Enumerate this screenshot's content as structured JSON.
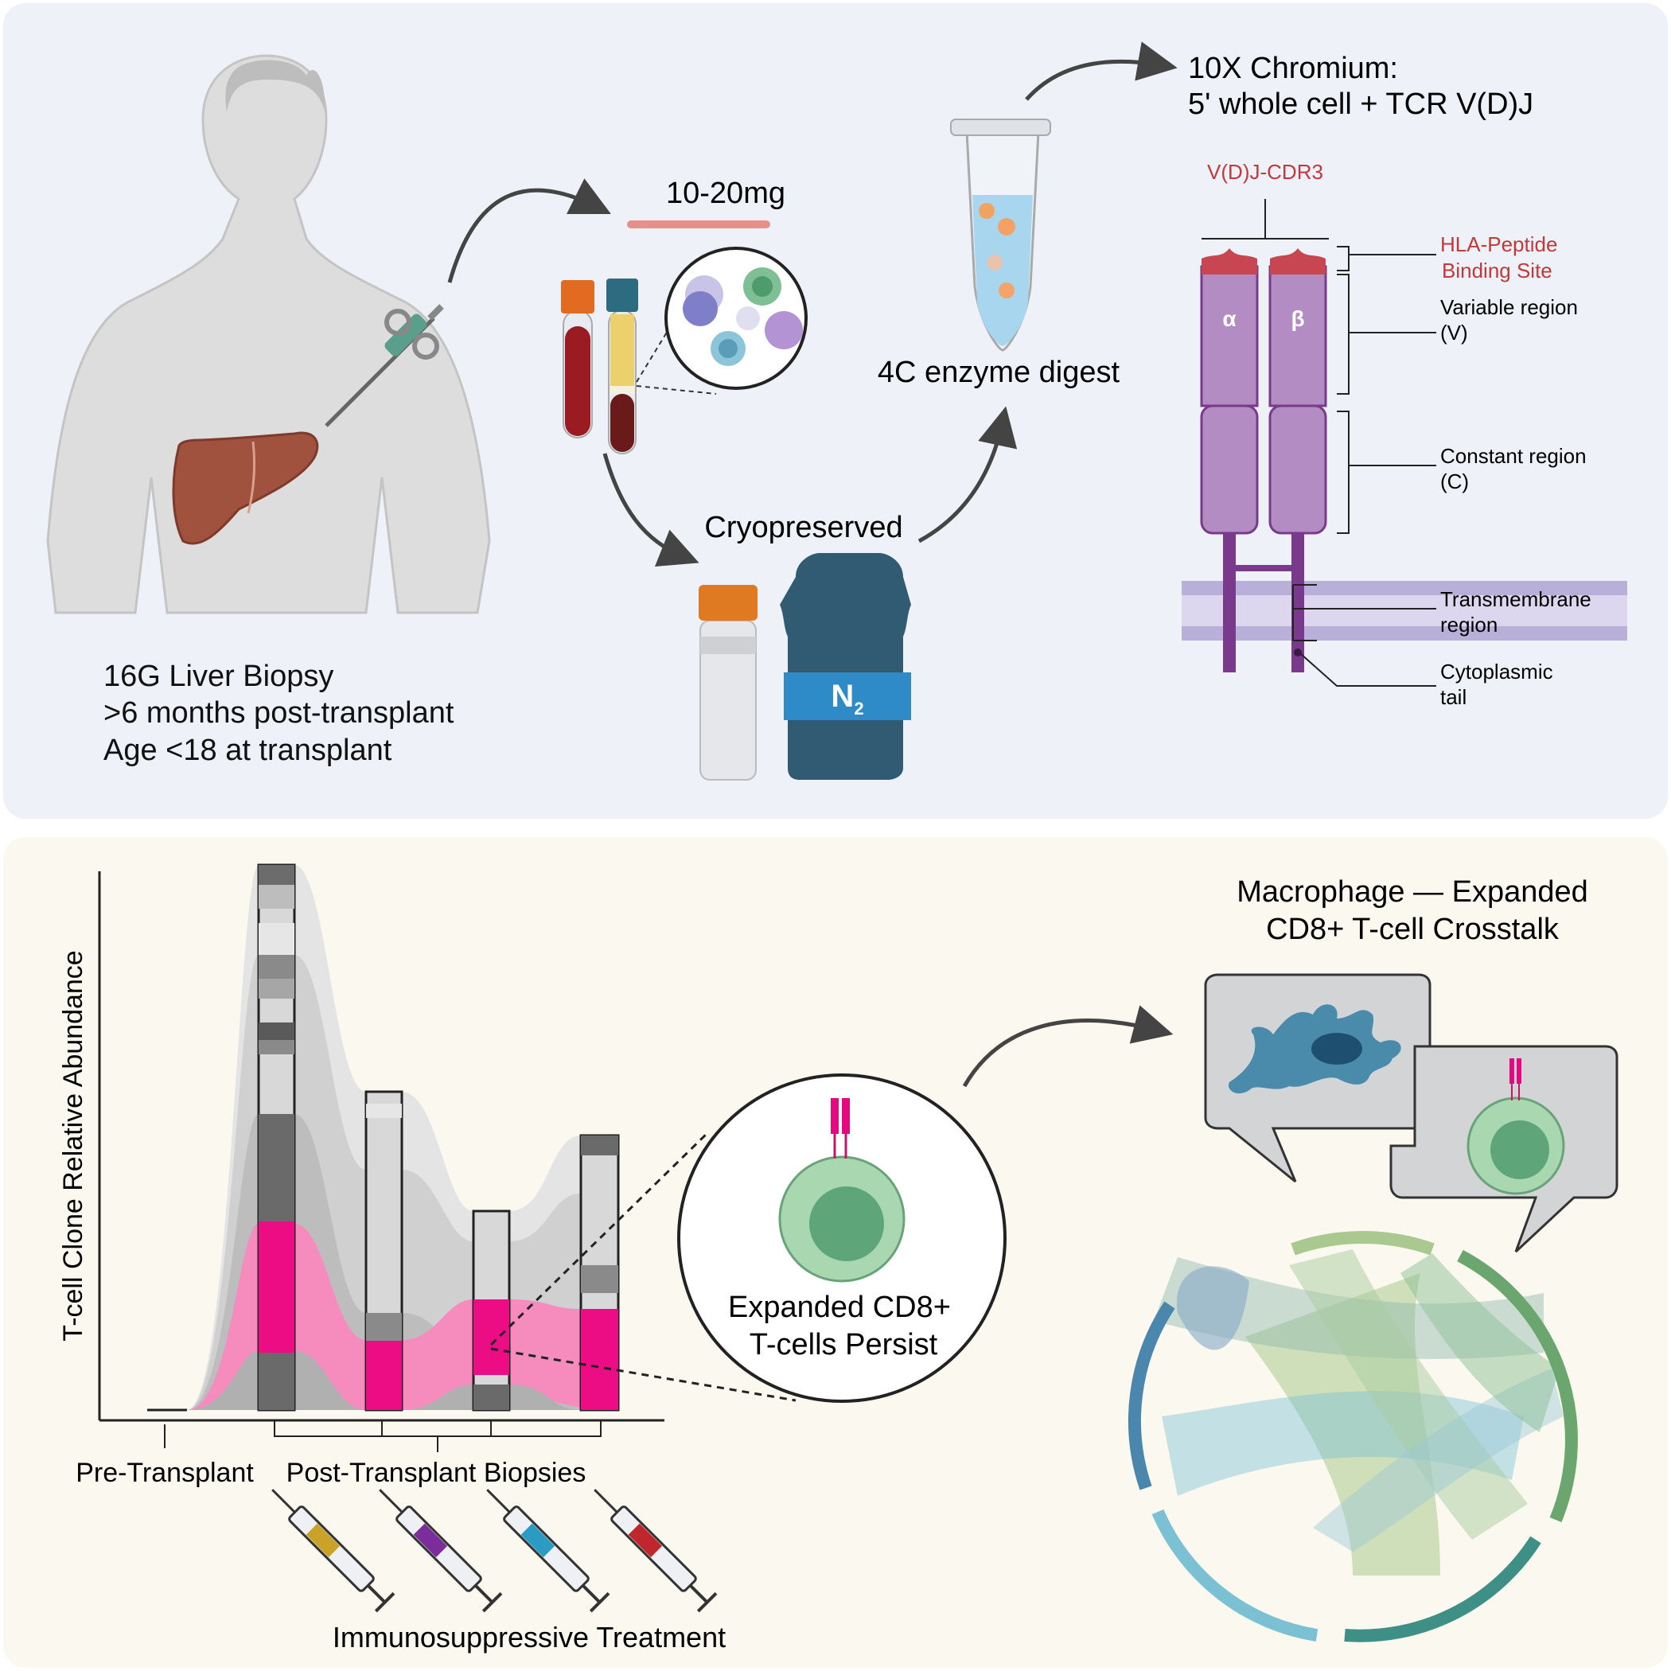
{
  "top": {
    "biopsy_lines": [
      "16G Liver Biopsy",
      ">6 months post-transplant",
      "Age <18 at transplant"
    ],
    "sample_mass": "10-20mg",
    "cryo_label": "Cryopreserved",
    "n2_label": "N",
    "n2_sub": "2",
    "digest_label": "4C enzyme digest",
    "chromium_lines": [
      "10X Chromium:",
      "5' whole cell + TCR V(D)J"
    ],
    "tcr": {
      "cdr3": "V(D)J-CDR3",
      "alpha": "α",
      "beta": "β",
      "hla_lines": [
        "HLA-Peptide",
        "Binding Site"
      ],
      "variable_lines": [
        "Variable region",
        "(V)"
      ],
      "constant_lines": [
        "Constant region",
        "(C)"
      ],
      "transmembrane_lines": [
        "Transmembrane",
        "region"
      ],
      "cytoplasmic_lines": [
        "Cytoplasmic",
        "tail"
      ]
    }
  },
  "bottom": {
    "y_axis_label": "T-cell Clone Relative Abundance",
    "pre_label": "Pre-Transplant",
    "post_label": "Post-Transplant Biopsies",
    "treatment_label": "Immunosuppressive Treatment",
    "persist_lines": [
      "Expanded CD8+",
      "T-cells Persist"
    ],
    "crosstalk_lines": [
      "Macrophage — Expanded",
      "CD8+ T-cell Crosstalk"
    ],
    "syringe_colors": [
      "#c9a227",
      "#7b2d9a",
      "#2b9bc4",
      "#c0262d"
    ],
    "expanded_clone_color": "#e5097f"
  }
}
